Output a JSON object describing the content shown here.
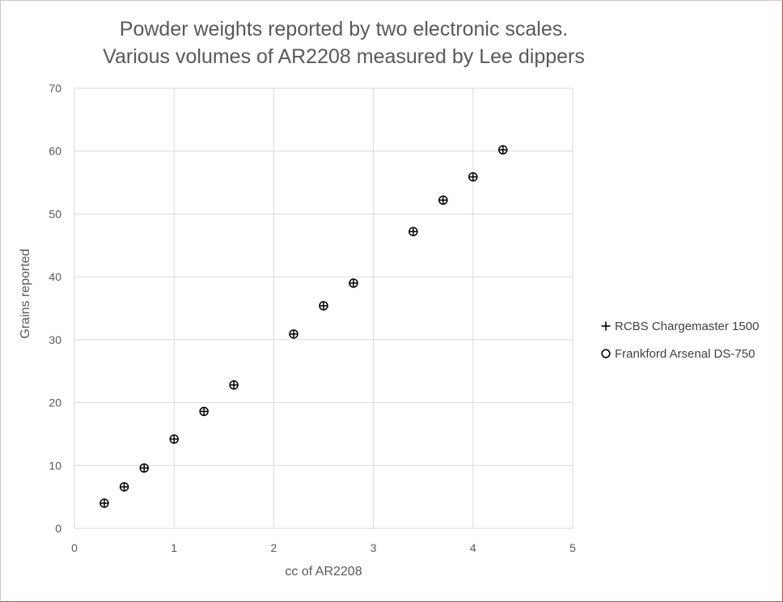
{
  "chart_data": {
    "type": "scatter",
    "title_lines": [
      "Powder weights reported by two electronic scales.",
      "Various volumes of AR2208 measured by Lee dippers"
    ],
    "xlabel": "cc of AR2208",
    "ylabel": "Grains reported",
    "xlim": [
      0,
      5
    ],
    "ylim": [
      0,
      70
    ],
    "xticks": [
      0,
      1,
      2,
      3,
      4,
      5
    ],
    "yticks": [
      0,
      10,
      20,
      30,
      40,
      50,
      60,
      70
    ],
    "grid": true,
    "legend_position": "right",
    "series": [
      {
        "name": "RCBS Chargemaster 1500",
        "marker": "plus",
        "color": "#000000",
        "points": [
          {
            "x": 0.3,
            "y": 4.0
          },
          {
            "x": 0.5,
            "y": 6.6
          },
          {
            "x": 0.7,
            "y": 9.6
          },
          {
            "x": 1.0,
            "y": 14.2
          },
          {
            "x": 1.3,
            "y": 18.6
          },
          {
            "x": 1.6,
            "y": 22.8
          },
          {
            "x": 2.2,
            "y": 30.9
          },
          {
            "x": 2.5,
            "y": 35.4
          },
          {
            "x": 2.8,
            "y": 39.0
          },
          {
            "x": 3.4,
            "y": 47.2
          },
          {
            "x": 3.7,
            "y": 52.2
          },
          {
            "x": 4.0,
            "y": 55.9
          },
          {
            "x": 4.3,
            "y": 60.2
          }
        ]
      },
      {
        "name": "Frankford Arsenal DS-750",
        "marker": "circle",
        "color": "#000000",
        "points": [
          {
            "x": 0.3,
            "y": 4.0
          },
          {
            "x": 0.5,
            "y": 6.6
          },
          {
            "x": 0.7,
            "y": 9.6
          },
          {
            "x": 1.0,
            "y": 14.2
          },
          {
            "x": 1.3,
            "y": 18.6
          },
          {
            "x": 1.6,
            "y": 22.8
          },
          {
            "x": 2.2,
            "y": 30.9
          },
          {
            "x": 2.5,
            "y": 35.4
          },
          {
            "x": 2.8,
            "y": 39.0
          },
          {
            "x": 3.4,
            "y": 47.2
          },
          {
            "x": 3.7,
            "y": 52.2
          },
          {
            "x": 4.0,
            "y": 55.9
          },
          {
            "x": 4.3,
            "y": 60.2
          }
        ]
      }
    ]
  }
}
